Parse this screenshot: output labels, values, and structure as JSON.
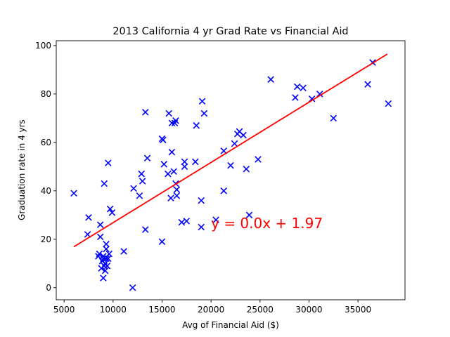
{
  "chart_data": {
    "type": "scatter",
    "title": "2013 California 4 yr Grad Rate vs Financial Aid",
    "xlabel": "Avg of Financial Aid ($)",
    "ylabel": "Graduation rate in 4 yrs",
    "xlim": [
      4200,
      39800
    ],
    "ylim": [
      -5,
      102
    ],
    "xticks": [
      5000,
      10000,
      15000,
      20000,
      25000,
      30000,
      35000
    ],
    "yticks": [
      0,
      20,
      40,
      60,
      80,
      100
    ],
    "grid": false,
    "marker_color": "#0000ff",
    "fit_color": "#ff0000",
    "fit_line": {
      "x": [
        6000,
        38000
      ],
      "y": [
        16.9,
        96.5
      ]
    },
    "annotation": {
      "text": "y = 0.0x + 1.97",
      "x": 20000,
      "y": 26
    },
    "points": [
      [
        6000,
        39
      ],
      [
        7400,
        22
      ],
      [
        7500,
        29
      ],
      [
        8500,
        13
      ],
      [
        8600,
        14
      ],
      [
        8700,
        26
      ],
      [
        8700,
        21
      ],
      [
        8800,
        8
      ],
      [
        8900,
        11
      ],
      [
        9000,
        4
      ],
      [
        9000,
        12
      ],
      [
        9000,
        13
      ],
      [
        9100,
        43
      ],
      [
        9100,
        9
      ],
      [
        9200,
        7
      ],
      [
        9200,
        10
      ],
      [
        9300,
        18
      ],
      [
        9300,
        16
      ],
      [
        9300,
        12
      ],
      [
        9400,
        9
      ],
      [
        9500,
        12
      ],
      [
        9500,
        51.5
      ],
      [
        9600,
        14
      ],
      [
        9700,
        32.5
      ],
      [
        9900,
        31
      ],
      [
        11100,
        15
      ],
      [
        12000,
        0
      ],
      [
        12100,
        41
      ],
      [
        12700,
        38
      ],
      [
        12900,
        47
      ],
      [
        13000,
        44
      ],
      [
        13300,
        24
      ],
      [
        13300,
        72.5
      ],
      [
        13500,
        53.5
      ],
      [
        15000,
        61.5
      ],
      [
        15100,
        61
      ],
      [
        15000,
        19
      ],
      [
        15200,
        51
      ],
      [
        15600,
        47
      ],
      [
        15700,
        72
      ],
      [
        15900,
        37
      ],
      [
        16000,
        68
      ],
      [
        16000,
        56
      ],
      [
        16200,
        48
      ],
      [
        16300,
        68
      ],
      [
        16400,
        69
      ],
      [
        16400,
        43
      ],
      [
        16500,
        40.5
      ],
      [
        16500,
        38
      ],
      [
        17000,
        27
      ],
      [
        17300,
        50
      ],
      [
        17300,
        52
      ],
      [
        17500,
        27.5
      ],
      [
        18400,
        52
      ],
      [
        18500,
        67
      ],
      [
        19000,
        36
      ],
      [
        19000,
        25
      ],
      [
        19100,
        77
      ],
      [
        19300,
        72
      ],
      [
        20500,
        28
      ],
      [
        21300,
        40
      ],
      [
        21300,
        56.5
      ],
      [
        22000,
        50.5
      ],
      [
        22400,
        59.5
      ],
      [
        22700,
        63.5
      ],
      [
        22900,
        64.5
      ],
      [
        23300,
        63
      ],
      [
        23600,
        49
      ],
      [
        23900,
        30
      ],
      [
        24800,
        53
      ],
      [
        26100,
        86
      ],
      [
        28600,
        78.5
      ],
      [
        28800,
        83
      ],
      [
        29400,
        82.5
      ],
      [
        30300,
        78
      ],
      [
        31100,
        80
      ],
      [
        32500,
        70
      ],
      [
        36000,
        84
      ],
      [
        36500,
        93
      ],
      [
        38100,
        76
      ]
    ]
  }
}
